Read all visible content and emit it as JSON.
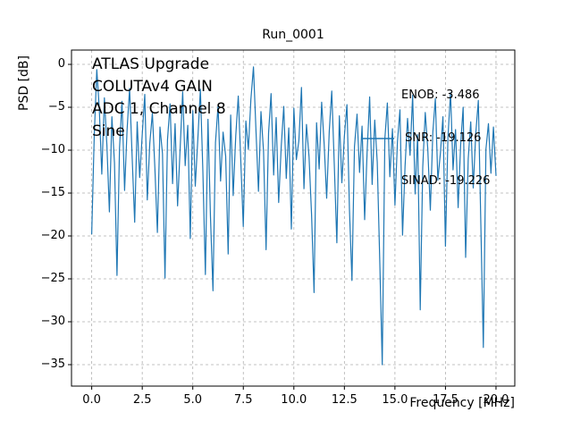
{
  "figure": {
    "title": "Run_0001",
    "xlabel": "Frequency [MHz]",
    "ylabel": "PSD [dB]",
    "annotation": "ATLAS Upgrade\nCOLUTAv4 GAIN\nADC 1, Channel 8\nSine",
    "legend": {
      "lines": [
        "ENOB: -3.486",
        " SNR: -19.126",
        "SINAD: -19.226"
      ],
      "line_color": "#1f77b4"
    }
  },
  "chart_data": {
    "type": "line",
    "title": "Run_0001",
    "xlabel": "Frequency [MHz]",
    "ylabel": "PSD [dB]",
    "xlim": [
      -1.0,
      20.93
    ],
    "ylim": [
      -37.5,
      1.67
    ],
    "grid": true,
    "grid_color": "#b0b0b0",
    "legend_position": "upper right",
    "legend_lines": [
      "ENOB: -3.486",
      " SNR: -19.126",
      "SINAD: -19.226"
    ],
    "annotation_text": "ATLAS Upgrade\nCOLUTAv4 GAIN\nADC 1, Channel 8\nSine",
    "x_ticks": [
      0.0,
      2.5,
      5.0,
      7.5,
      10.0,
      12.5,
      15.0,
      17.5,
      20.0
    ],
    "x_tick_labels": [
      "0.0",
      "2.5",
      "5.0",
      "7.5",
      "10.0",
      "12.5",
      "15.0",
      "17.5",
      "20.0"
    ],
    "y_ticks": [
      0,
      -5,
      -10,
      -15,
      -20,
      -25,
      -30,
      -35
    ],
    "y_tick_labels": [
      "0",
      "−5",
      "−10",
      "−15",
      "−20",
      "−25",
      "−30",
      "−35"
    ],
    "series": [
      {
        "name": "PSD",
        "color": "#1f77b4",
        "x_start": 0.0,
        "x_step": 0.125,
        "values": [
          -19.8,
          -8.5,
          -0.6,
          -5.2,
          -12.8,
          -3.9,
          -9.4,
          -17.2,
          -6.1,
          -11.5,
          -24.6,
          -9.8,
          -4.3,
          -14.7,
          -7.6,
          -2.8,
          -10.9,
          -18.4,
          -6.7,
          -13.2,
          -8.1,
          -3.5,
          -15.8,
          -9.2,
          -5.7,
          -12.1,
          -19.6,
          -7.3,
          -10.4,
          -24.9,
          -8.8,
          -4.6,
          -13.9,
          -6.9,
          -16.5,
          -9.7,
          -3.2,
          -11.8,
          -7.1,
          -20.3,
          -5.4,
          -14.2,
          -8.6,
          -2.9,
          -12.5,
          -24.5,
          -6.4,
          -17.8,
          -26.4,
          -9.1,
          -4.8,
          -13.6,
          -7.9,
          -10.7,
          -22.1,
          -5.9,
          -15.3,
          -8.3,
          -3.7,
          -11.2,
          -18.9,
          -6.6,
          -9.9,
          -4.1,
          -0.3,
          -7.7,
          -14.8,
          -5.5,
          -10.2,
          -21.6,
          -8.0,
          -3.4,
          -12.9,
          -6.2,
          -16.1,
          -9.5,
          -4.9,
          -13.3,
          -7.4,
          -19.2,
          -5.1,
          -11.1,
          -8.9,
          -2.7,
          -14.5,
          -7.0,
          -10.8,
          -17.5,
          -26.6,
          -6.8,
          -12.2,
          -4.4,
          -9.3,
          -15.6,
          -7.8,
          -3.1,
          -11.6,
          -20.8,
          -6.0,
          -13.8,
          -8.4,
          -4.7,
          -16.9,
          -25.2,
          -9.6,
          -5.8,
          -12.6,
          -7.2,
          -18.1,
          -10.1,
          -3.8,
          -14.0,
          -6.5,
          -11.4,
          -22.9,
          -35.0,
          -8.7,
          -4.5,
          -13.1,
          -7.5,
          -16.4,
          -9.0,
          -5.3,
          -19.9,
          -11.9,
          -6.3,
          -10.6,
          -3.6,
          -15.1,
          -8.2,
          -28.6,
          -12.0,
          -5.6,
          -9.8,
          -17.0,
          -7.9,
          -4.0,
          -13.5,
          -10.3,
          -6.1,
          -21.2,
          -8.5,
          -3.3,
          -12.3,
          -7.6,
          -16.7,
          -9.4,
          -5.0,
          -22.5,
          -11.0,
          -6.7,
          -14.4,
          -8.1,
          -4.2,
          -18.6,
          -33.0,
          -9.9,
          -6.9,
          -12.7,
          -7.3,
          -13.0
        ]
      }
    ]
  }
}
